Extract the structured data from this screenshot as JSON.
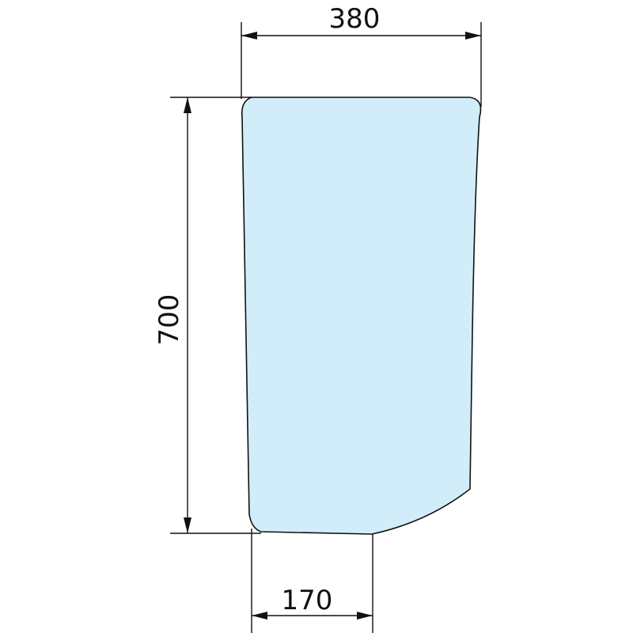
{
  "dimensions": {
    "width_top": "380",
    "height": "700",
    "width_bottom": "170"
  },
  "colors": {
    "glass_fill": "#d2edfa",
    "line": "#111111"
  }
}
